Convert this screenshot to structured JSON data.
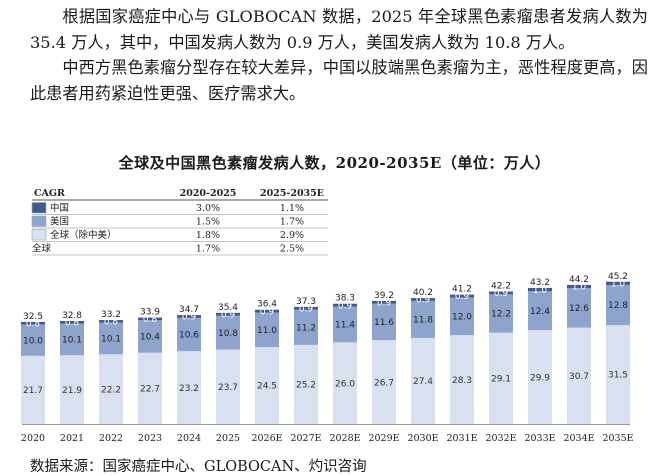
{
  "paragraph": {
    "line1": "根据国家癌症中心与 GLOBOCAN 数据，2025 年全球黑色素瘤患者发病人数为 35.4 万人，其中，中国发病人数为 0.9 万人，美国发病人数为 10.8 万人。",
    "line2": "中西方黑色素瘤分型存在较大差异，中国以肢端黑色素瘤为主，恶性程度更高，因此患者用药紧迫性更强、医疗需求大。"
  },
  "chart_title": "全球及中国黑色素瘤发病人数，2020-2035E（单位：万人）",
  "source": "数据来源：国家癌症中心、GLOBOCAN、灼识咨询",
  "colors": {
    "china": "#3f5b8e",
    "usa": "#8fa4cd",
    "global_ex": "#d9e0ef",
    "line": "#9aa3b5"
  },
  "cagr_table": {
    "header": "CAGR",
    "col1": "2020-2025",
    "col2": "2025-2035E",
    "rows": [
      {
        "name": "中国",
        "v1": "3.0%",
        "v2": "1.1%"
      },
      {
        "name": "美国",
        "v1": "1.5%",
        "v2": "1.7%"
      },
      {
        "name": "全球（除中美）",
        "v1": "1.8%",
        "v2": "2.9%"
      },
      {
        "name": "全球",
        "v1": "1.7%",
        "v2": "2.5%"
      }
    ]
  },
  "chart_data": {
    "type": "bar",
    "stacked": true,
    "title": "全球及中国黑色素瘤发病人数，2020-2035E（单位：万人）",
    "categories": [
      "2020",
      "2021",
      "2022",
      "2023",
      "2024",
      "2025",
      "2026E",
      "2027E",
      "2028E",
      "2029E",
      "2030E",
      "2031E",
      "2032E",
      "2033E",
      "2034E",
      "2035E"
    ],
    "series": [
      {
        "name": "全球（除中美）",
        "values": [
          21.7,
          21.9,
          22.2,
          22.7,
          23.2,
          23.7,
          24.5,
          25.2,
          26.0,
          26.7,
          27.4,
          28.3,
          29.1,
          29.9,
          30.7,
          31.5
        ]
      },
      {
        "name": "美国",
        "values": [
          10.0,
          10.1,
          10.1,
          10.4,
          10.6,
          10.8,
          11.0,
          11.2,
          11.4,
          11.6,
          11.8,
          12.0,
          12.2,
          12.4,
          12.6,
          12.8
        ]
      },
      {
        "name": "中国",
        "values": [
          0.8,
          0.8,
          0.8,
          0.8,
          0.9,
          0.9,
          0.9,
          0.9,
          0.9,
          0.9,
          0.9,
          0.9,
          0.9,
          1.0,
          1.0,
          1.0
        ]
      }
    ],
    "totals": [
      32.5,
      32.8,
      33.2,
      33.9,
      34.7,
      35.4,
      36.4,
      37.3,
      38.3,
      39.2,
      40.2,
      41.2,
      42.2,
      43.2,
      44.2,
      45.2
    ],
    "ylim": [
      0,
      50
    ],
    "legend": "top-left"
  }
}
